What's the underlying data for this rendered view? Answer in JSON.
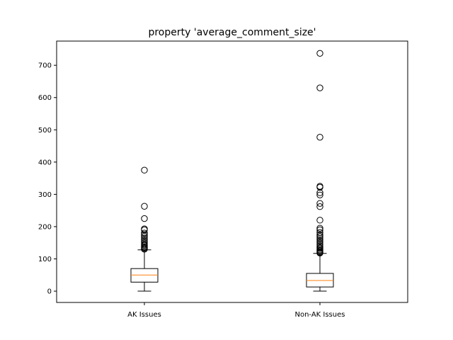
{
  "chart_data": {
    "type": "boxplot",
    "title": "property 'average_comment_size'",
    "xlabel": "",
    "ylabel": "",
    "categories": [
      "AK Issues",
      "Non-AK Issues"
    ],
    "ylim": [
      -35,
      775
    ],
    "yticks": [
      0,
      100,
      200,
      300,
      400,
      500,
      600,
      700
    ],
    "grid": false,
    "boxes": [
      {
        "name": "AK Issues",
        "whisker_low": 0,
        "q1": 28,
        "median": 50,
        "q3": 70,
        "whisker_high": 128,
        "fliers": [
          130,
          132,
          135,
          138,
          142,
          145,
          150,
          155,
          160,
          165,
          170,
          175,
          180,
          190,
          193,
          225,
          263,
          375
        ]
      },
      {
        "name": "Non-AK Issues",
        "whisker_low": 0,
        "q1": 13,
        "median": 33,
        "q3": 55,
        "whisker_high": 117,
        "fliers": [
          118,
          120,
          122,
          125,
          128,
          132,
          135,
          140,
          145,
          150,
          155,
          160,
          165,
          170,
          175,
          182,
          190,
          195,
          220,
          262,
          272,
          298,
          305,
          322,
          325,
          477,
          630,
          737
        ]
      }
    ],
    "colors": {
      "box": "#000000",
      "median": "#ff7f0e",
      "flier": "#000000"
    }
  }
}
